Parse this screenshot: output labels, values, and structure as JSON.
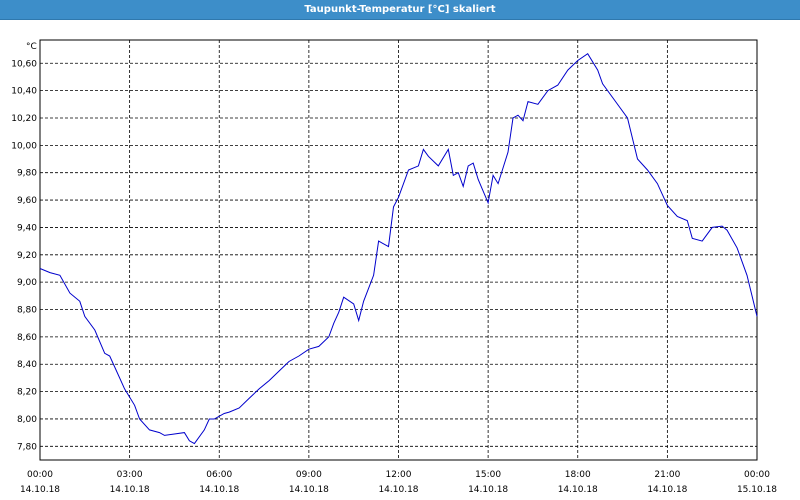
{
  "window": {
    "title": "Taupunkt-Temperatur [°C] skaliert"
  },
  "colors": {
    "title_bar": "#3d8ec9",
    "line": "#0000cc",
    "grid": "#000000"
  },
  "chart_data": {
    "type": "line",
    "title": "Taupunkt-Temperatur [°C] skaliert",
    "ylabel": "°C",
    "xlabel": "",
    "ylim": [
      7.7,
      10.77
    ],
    "xlim": [
      "14.10.18 00:00",
      "15.10.18 00:00"
    ],
    "grid": true,
    "legend": "none",
    "y_ticks": [
      "7,80",
      "8,00",
      "8,20",
      "8,40",
      "8,60",
      "8,80",
      "9,00",
      "9,20",
      "9,40",
      "9,60",
      "9,80",
      "10,00",
      "10,20",
      "10,40",
      "10,60"
    ],
    "x_ticks": [
      {
        "time": "00:00",
        "date": "14.10.18"
      },
      {
        "time": "03:00",
        "date": "14.10.18"
      },
      {
        "time": "06:00",
        "date": "14.10.18"
      },
      {
        "time": "09:00",
        "date": "14.10.18"
      },
      {
        "time": "12:00",
        "date": "14.10.18"
      },
      {
        "time": "15:00",
        "date": "14.10.18"
      },
      {
        "time": "18:00",
        "date": "14.10.18"
      },
      {
        "time": "21:00",
        "date": "14.10.18"
      },
      {
        "time": "00:00",
        "date": "15.10.18"
      }
    ],
    "series": [
      {
        "x": [
          "00:00",
          "00:20",
          "00:40",
          "01:00",
          "01:20",
          "01:30",
          "01:50",
          "02:10",
          "02:20",
          "02:30",
          "02:50",
          "03:10",
          "03:20",
          "03:40",
          "04:00",
          "04:10",
          "04:30",
          "04:50",
          "05:00",
          "05:10",
          "05:30",
          "05:40",
          "05:50",
          "06:10",
          "06:20",
          "06:40",
          "07:00",
          "07:20",
          "07:40",
          "08:00",
          "08:20",
          "08:40",
          "09:00",
          "09:20",
          "09:40",
          "09:50",
          "10:00",
          "10:10",
          "10:30",
          "10:40",
          "10:50",
          "11:10",
          "11:20",
          "11:40",
          "11:50",
          "12:00",
          "12:20",
          "12:40",
          "12:50",
          "13:00",
          "13:20",
          "13:40",
          "13:50",
          "14:00",
          "14:10",
          "14:20",
          "14:30",
          "14:40",
          "15:00",
          "15:10",
          "15:20",
          "15:40",
          "15:50",
          "16:00",
          "16:10",
          "16:20",
          "16:40",
          "17:00",
          "17:20",
          "17:40",
          "18:00",
          "18:20",
          "18:40",
          "18:50",
          "19:10",
          "19:40",
          "20:00",
          "20:20",
          "20:40",
          "20:50",
          "21:00",
          "21:20",
          "21:40",
          "21:50",
          "22:10",
          "22:30",
          "22:50",
          "23:00",
          "23:20",
          "23:40",
          "23:50",
          "24:00"
        ],
        "y": [
          9.1,
          9.07,
          9.05,
          8.92,
          8.86,
          8.75,
          8.65,
          8.48,
          8.46,
          8.38,
          8.22,
          8.1,
          8.0,
          7.92,
          7.9,
          7.88,
          7.89,
          7.9,
          7.84,
          7.82,
          7.92,
          8.0,
          8.0,
          8.04,
          8.05,
          8.08,
          8.15,
          8.22,
          8.28,
          8.35,
          8.42,
          8.46,
          8.51,
          8.53,
          8.6,
          8.7,
          8.78,
          8.89,
          8.84,
          8.72,
          8.86,
          9.05,
          9.3,
          9.26,
          9.55,
          9.62,
          9.82,
          9.85,
          9.97,
          9.92,
          9.85,
          9.97,
          9.78,
          9.8,
          9.7,
          9.85,
          9.87,
          9.75,
          9.58,
          9.78,
          9.72,
          9.95,
          10.2,
          10.22,
          10.18,
          10.32,
          10.3,
          10.4,
          10.44,
          10.55,
          10.62,
          10.67,
          10.55,
          10.45,
          10.35,
          10.2,
          9.9,
          9.82,
          9.72,
          9.64,
          9.56,
          9.48,
          9.45,
          9.32,
          9.3,
          9.4,
          9.41,
          9.38,
          9.25,
          9.05,
          8.9,
          8.75
        ]
      }
    ]
  }
}
